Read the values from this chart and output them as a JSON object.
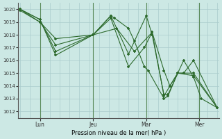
{
  "background_color": "#cce8e4",
  "grid_color": "#aacccc",
  "line_color": "#2d6a2d",
  "marker_color": "#2d6a2d",
  "xlabel": "Pression niveau de la mer( hPa )",
  "ylim": [
    1011.5,
    1020.5
  ],
  "yticks": [
    1012,
    1013,
    1014,
    1015,
    1016,
    1017,
    1018,
    1019,
    1020
  ],
  "xtick_labels": [
    "Lun",
    "Jeu",
    "Mar",
    "Mer"
  ],
  "xtick_positions": [
    10,
    37,
    64,
    91
  ],
  "vline_positions": [
    10,
    37,
    64,
    91
  ],
  "series": [
    {
      "x": [
        0,
        10,
        18,
        37,
        46,
        48,
        55,
        58,
        63,
        65,
        73,
        75,
        80,
        83,
        88,
        92,
        100
      ],
      "y": [
        1020.0,
        1019.0,
        1017.2,
        1018.0,
        1019.5,
        1019.3,
        1018.5,
        1017.5,
        1015.5,
        1015.2,
        1013.0,
        1013.2,
        1015.0,
        1016.0,
        1014.7,
        1013.0,
        1012.3
      ]
    },
    {
      "x": [
        0,
        10,
        18,
        37,
        46,
        55,
        64,
        67,
        73,
        75,
        80,
        83,
        88,
        100
      ],
      "y": [
        1020.0,
        1019.2,
        1016.4,
        1018.0,
        1019.5,
        1016.5,
        1019.5,
        1018.0,
        1013.3,
        1013.3,
        1015.0,
        1015.0,
        1016.0,
        1012.3
      ]
    },
    {
      "x": [
        0,
        10,
        18,
        37,
        49,
        58,
        67,
        73,
        76,
        80,
        88,
        100
      ],
      "y": [
        1020.0,
        1019.2,
        1016.7,
        1018.0,
        1018.5,
        1016.7,
        1018.2,
        1015.2,
        1014.0,
        1015.0,
        1014.8,
        1012.3
      ]
    },
    {
      "x": [
        0,
        10,
        18,
        37,
        46,
        55,
        63,
        67,
        73,
        76,
        80,
        88,
        100
      ],
      "y": [
        1019.9,
        1019.0,
        1017.7,
        1018.0,
        1019.3,
        1015.5,
        1017.0,
        1018.2,
        1013.2,
        1014.0,
        1015.0,
        1015.0,
        1012.3
      ]
    }
  ]
}
